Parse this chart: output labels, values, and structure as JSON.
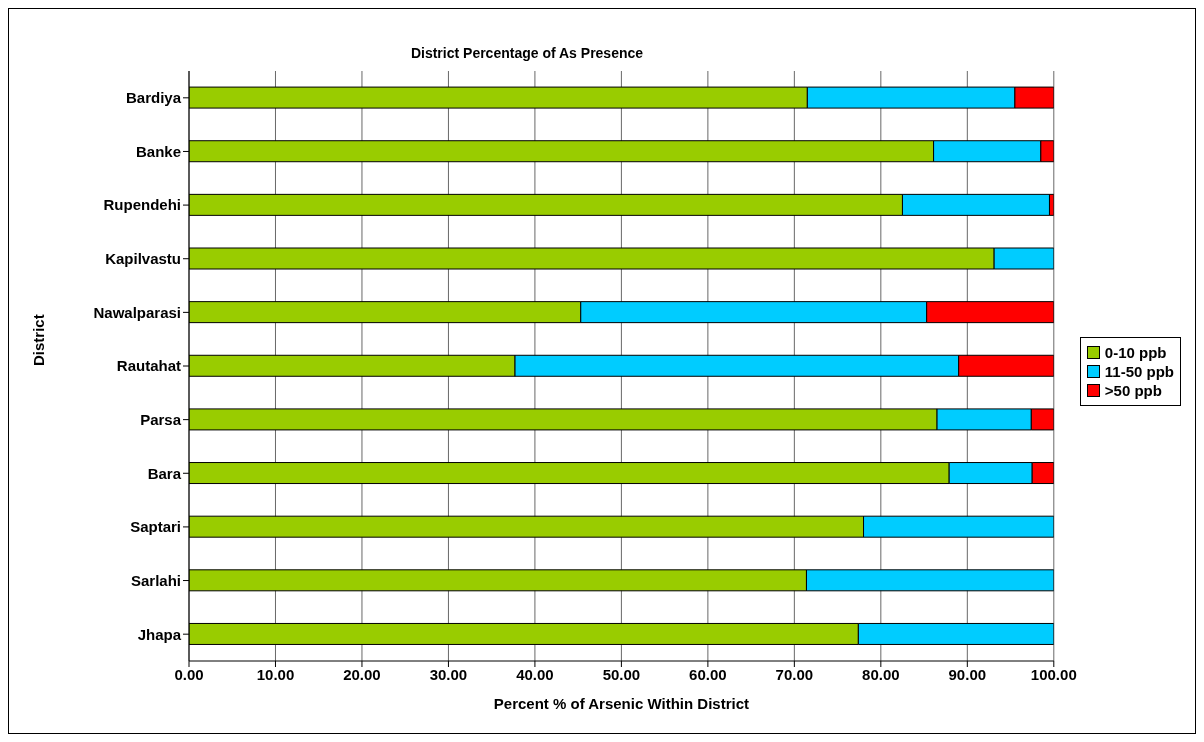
{
  "chart_data": {
    "type": "bar",
    "title": "District Percentage of As Presence",
    "xlabel": "Percent % of Arsenic Within District",
    "ylabel": "District",
    "orientation": "horizontal",
    "stacked": true,
    "categories": [
      "Bardiya",
      "Banke",
      "Rupendehi",
      "Kapilvastu",
      "Nawalparasi",
      "Rautahat",
      "Parsa",
      "Bara",
      "Saptari",
      "Sarlahi",
      "Jhapa"
    ],
    "series": [
      {
        "name": "0-10 ppb",
        "color": "#99cc00",
        "values": [
          71.5,
          86.1,
          82.5,
          93.1,
          45.3,
          37.7,
          86.5,
          87.9,
          78.0,
          71.4,
          77.4
        ]
      },
      {
        "name": "11-50 ppb",
        "color": "#00ccff",
        "values": [
          24.0,
          12.4,
          17.0,
          6.9,
          40.0,
          51.3,
          10.9,
          9.6,
          22.0,
          28.6,
          22.6
        ]
      },
      {
        "name": ">50 ppb",
        "color": "#ff0000",
        "values": [
          4.5,
          1.5,
          0.5,
          null,
          14.7,
          11.0,
          2.6,
          2.5,
          null,
          null,
          null
        ]
      }
    ],
    "xlim": [
      0,
      100
    ],
    "xticks": [
      {
        "value": 0,
        "label": "0.00"
      },
      {
        "value": 10,
        "label": "10.00"
      },
      {
        "value": 20,
        "label": "20.00"
      },
      {
        "value": 30,
        "label": "30.00"
      },
      {
        "value": 40,
        "label": "40.00"
      },
      {
        "value": 50,
        "label": "50.00"
      },
      {
        "value": 60,
        "label": "60.00"
      },
      {
        "value": 70,
        "label": "70.00"
      },
      {
        "value": 80,
        "label": "80.00"
      },
      {
        "value": 90,
        "label": "90.00"
      },
      {
        "value": 100,
        "label": "100.00"
      }
    ],
    "grid": "x",
    "legend": "right"
  }
}
